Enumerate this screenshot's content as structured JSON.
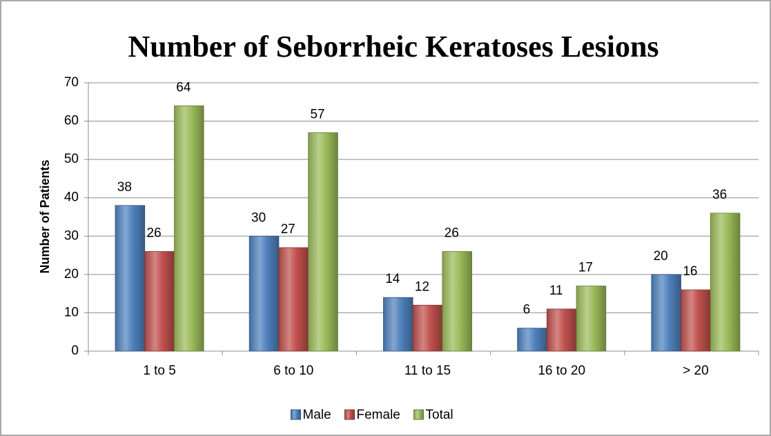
{
  "chart_data": {
    "type": "bar",
    "title": "Number of Seborrheic Keratoses Lesions",
    "ylabel": "Number of Patients",
    "categories": [
      "1 to 5",
      "6 to 10",
      "11 to 15",
      "16 to 20",
      "> 20"
    ],
    "series": [
      {
        "name": "Male",
        "color": "#4f81bd",
        "values": [
          38,
          30,
          14,
          6,
          20
        ]
      },
      {
        "name": "Female",
        "color": "#c0504d",
        "values": [
          26,
          27,
          12,
          11,
          16
        ]
      },
      {
        "name": "Total",
        "color": "#9bbb59",
        "values": [
          64,
          57,
          26,
          17,
          36
        ]
      }
    ],
    "ylim": [
      0,
      70
    ],
    "yticks": [
      0,
      10,
      20,
      30,
      40,
      50,
      60,
      70
    ],
    "grid": true,
    "legend": "bottom"
  }
}
